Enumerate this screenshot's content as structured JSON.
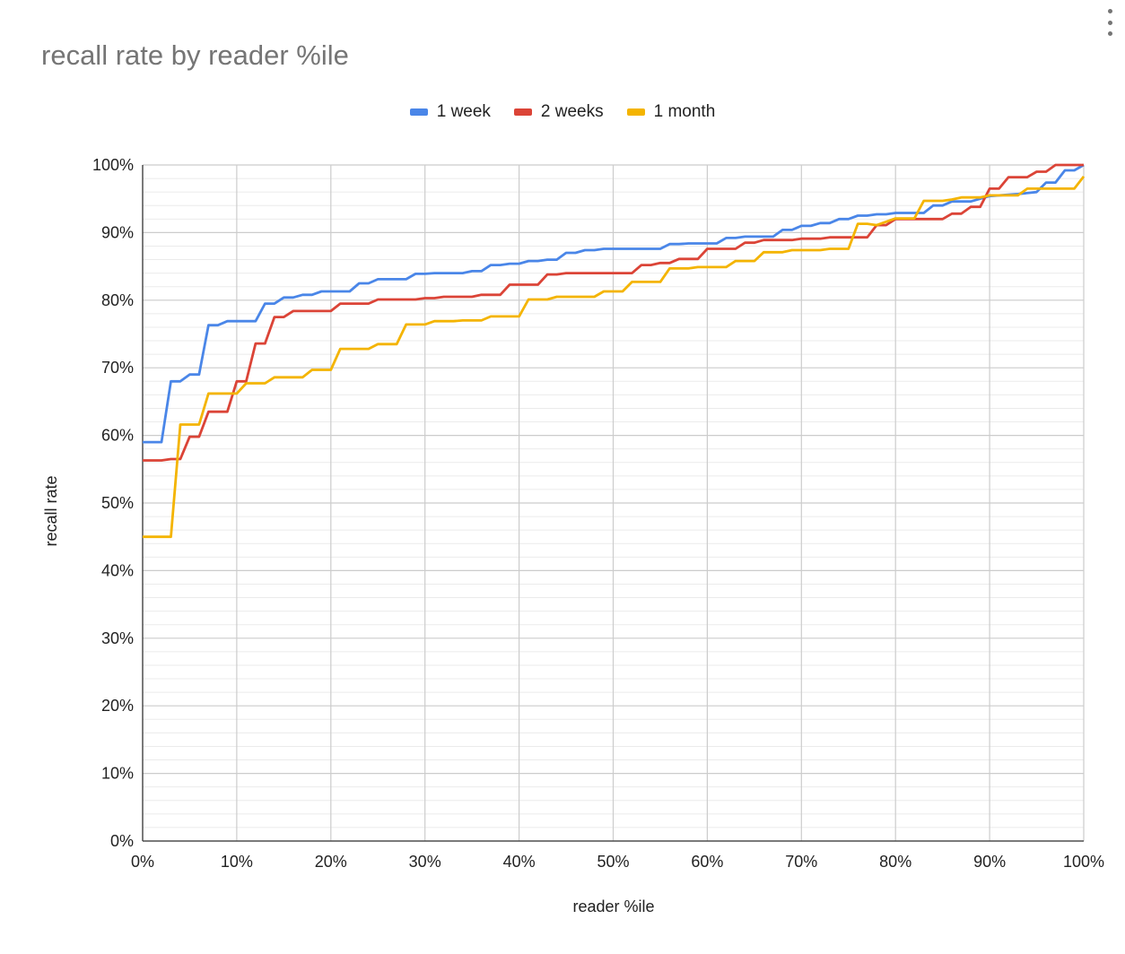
{
  "menu_icon": "more-vert-icon",
  "chart_data": {
    "type": "line",
    "title": "recall rate by reader %ile",
    "xlabel": "reader %ile",
    "ylabel": "recall rate",
    "xlim": [
      0,
      100
    ],
    "ylim": [
      0,
      100
    ],
    "x_ticks": [
      "0%",
      "10%",
      "20%",
      "30%",
      "40%",
      "50%",
      "60%",
      "70%",
      "80%",
      "90%",
      "100%"
    ],
    "y_ticks": [
      "0%",
      "10%",
      "20%",
      "30%",
      "40%",
      "50%",
      "60%",
      "70%",
      "80%",
      "90%",
      "100%"
    ],
    "grid": true,
    "legend_position": "top",
    "series": [
      {
        "name": "1 week",
        "color": "#4a86e8",
        "points": [
          [
            0,
            59
          ],
          [
            2,
            59
          ],
          [
            3,
            68
          ],
          [
            4,
            68
          ],
          [
            5,
            69
          ],
          [
            6,
            69
          ],
          [
            7,
            76.3
          ],
          [
            8,
            76.3
          ],
          [
            9,
            76.9
          ],
          [
            12,
            76.9
          ],
          [
            13,
            79.5
          ],
          [
            14,
            79.5
          ],
          [
            15,
            80.4
          ],
          [
            16,
            80.4
          ],
          [
            17,
            80.8
          ],
          [
            18,
            80.8
          ],
          [
            19,
            81.3
          ],
          [
            22,
            81.3
          ],
          [
            23,
            82.5
          ],
          [
            24,
            82.5
          ],
          [
            25,
            83.1
          ],
          [
            28,
            83.1
          ],
          [
            29,
            83.9
          ],
          [
            30,
            83.9
          ],
          [
            31,
            84
          ],
          [
            34,
            84
          ],
          [
            35,
            84.3
          ],
          [
            36,
            84.3
          ],
          [
            37,
            85.2
          ],
          [
            38,
            85.2
          ],
          [
            39,
            85.4
          ],
          [
            40,
            85.4
          ],
          [
            41,
            85.8
          ],
          [
            42,
            85.8
          ],
          [
            43,
            86
          ],
          [
            44,
            86
          ],
          [
            45,
            87
          ],
          [
            46,
            87
          ],
          [
            47,
            87.4
          ],
          [
            48,
            87.4
          ],
          [
            49,
            87.6
          ],
          [
            55,
            87.6
          ],
          [
            56,
            88.3
          ],
          [
            57,
            88.3
          ],
          [
            58,
            88.4
          ],
          [
            61,
            88.4
          ],
          [
            62,
            89.2
          ],
          [
            63,
            89.2
          ],
          [
            64,
            89.4
          ],
          [
            67,
            89.4
          ],
          [
            68,
            90.4
          ],
          [
            69,
            90.4
          ],
          [
            70,
            91
          ],
          [
            71,
            91
          ],
          [
            72,
            91.4
          ],
          [
            73,
            91.4
          ],
          [
            74,
            92
          ],
          [
            75,
            92
          ],
          [
            76,
            92.5
          ],
          [
            77,
            92.5
          ],
          [
            78,
            92.7
          ],
          [
            79,
            92.7
          ],
          [
            80,
            92.9
          ],
          [
            83,
            92.9
          ],
          [
            84,
            94
          ],
          [
            85,
            94
          ],
          [
            86,
            94.6
          ],
          [
            88,
            94.6
          ],
          [
            89,
            95
          ],
          [
            90,
            95.4
          ],
          [
            93,
            95.7
          ],
          [
            95,
            96
          ],
          [
            96,
            97.4
          ],
          [
            97,
            97.4
          ],
          [
            98,
            99.2
          ],
          [
            99,
            99.2
          ],
          [
            100,
            100
          ]
        ]
      },
      {
        "name": "2 weeks",
        "color": "#db4437",
        "points": [
          [
            0,
            56.3
          ],
          [
            2,
            56.3
          ],
          [
            3,
            56.5
          ],
          [
            4,
            56.5
          ],
          [
            5,
            59.8
          ],
          [
            6,
            59.8
          ],
          [
            7,
            63.5
          ],
          [
            9,
            63.5
          ],
          [
            10,
            68
          ],
          [
            11,
            68
          ],
          [
            12,
            73.6
          ],
          [
            13,
            73.6
          ],
          [
            14,
            77.5
          ],
          [
            15,
            77.5
          ],
          [
            16,
            78.4
          ],
          [
            20,
            78.4
          ],
          [
            21,
            79.5
          ],
          [
            24,
            79.5
          ],
          [
            25,
            80.1
          ],
          [
            29,
            80.1
          ],
          [
            30,
            80.3
          ],
          [
            31,
            80.3
          ],
          [
            32,
            80.5
          ],
          [
            35,
            80.5
          ],
          [
            36,
            80.8
          ],
          [
            38,
            80.8
          ],
          [
            39,
            82.3
          ],
          [
            42,
            82.3
          ],
          [
            43,
            83.8
          ],
          [
            44,
            83.8
          ],
          [
            45,
            84
          ],
          [
            52,
            84
          ],
          [
            53,
            85.2
          ],
          [
            54,
            85.2
          ],
          [
            55,
            85.5
          ],
          [
            56,
            85.5
          ],
          [
            57,
            86.1
          ],
          [
            59,
            86.1
          ],
          [
            60,
            87.6
          ],
          [
            63,
            87.6
          ],
          [
            64,
            88.5
          ],
          [
            65,
            88.5
          ],
          [
            66,
            88.9
          ],
          [
            69,
            88.9
          ],
          [
            70,
            89.1
          ],
          [
            72,
            89.1
          ],
          [
            73,
            89.3
          ],
          [
            77,
            89.3
          ],
          [
            78,
            91.1
          ],
          [
            79,
            91.1
          ],
          [
            80,
            92
          ],
          [
            85,
            92
          ],
          [
            86,
            92.8
          ],
          [
            87,
            92.8
          ],
          [
            88,
            93.8
          ],
          [
            89,
            93.8
          ],
          [
            90,
            96.5
          ],
          [
            91,
            96.5
          ],
          [
            92,
            98.2
          ],
          [
            94,
            98.2
          ],
          [
            95,
            99
          ],
          [
            96,
            99
          ],
          [
            97,
            100
          ],
          [
            100,
            100
          ]
        ]
      },
      {
        "name": "1 month",
        "color": "#f4b400",
        "points": [
          [
            0,
            45
          ],
          [
            3,
            45
          ],
          [
            4,
            61.6
          ],
          [
            6,
            61.6
          ],
          [
            7,
            66.2
          ],
          [
            10,
            66.2
          ],
          [
            11,
            67.7
          ],
          [
            13,
            67.7
          ],
          [
            14,
            68.6
          ],
          [
            17,
            68.6
          ],
          [
            18,
            69.7
          ],
          [
            20,
            69.7
          ],
          [
            21,
            72.8
          ],
          [
            24,
            72.8
          ],
          [
            25,
            73.5
          ],
          [
            27,
            73.5
          ],
          [
            28,
            76.4
          ],
          [
            30,
            76.4
          ],
          [
            31,
            76.9
          ],
          [
            33,
            76.9
          ],
          [
            34,
            77
          ],
          [
            36,
            77
          ],
          [
            37,
            77.6
          ],
          [
            40,
            77.6
          ],
          [
            41,
            80.1
          ],
          [
            43,
            80.1
          ],
          [
            44,
            80.5
          ],
          [
            48,
            80.5
          ],
          [
            49,
            81.3
          ],
          [
            51,
            81.3
          ],
          [
            52,
            82.7
          ],
          [
            55,
            82.7
          ],
          [
            56,
            84.7
          ],
          [
            58,
            84.7
          ],
          [
            59,
            84.9
          ],
          [
            62,
            84.9
          ],
          [
            63,
            85.8
          ],
          [
            65,
            85.8
          ],
          [
            66,
            87.1
          ],
          [
            68,
            87.1
          ],
          [
            69,
            87.4
          ],
          [
            72,
            87.4
          ],
          [
            73,
            87.6
          ],
          [
            75,
            87.6
          ],
          [
            76,
            91.3
          ],
          [
            77,
            91.3
          ],
          [
            78,
            91.1
          ],
          [
            80,
            92.1
          ],
          [
            82,
            92.1
          ],
          [
            83,
            94.7
          ],
          [
            84,
            94.7
          ],
          [
            85,
            94.7
          ],
          [
            86,
            94.9
          ],
          [
            87,
            95.2
          ],
          [
            89,
            95.2
          ],
          [
            90,
            95.5
          ],
          [
            93,
            95.5
          ],
          [
            94,
            96.5
          ],
          [
            99,
            96.5
          ],
          [
            100,
            98.3
          ]
        ]
      }
    ]
  }
}
